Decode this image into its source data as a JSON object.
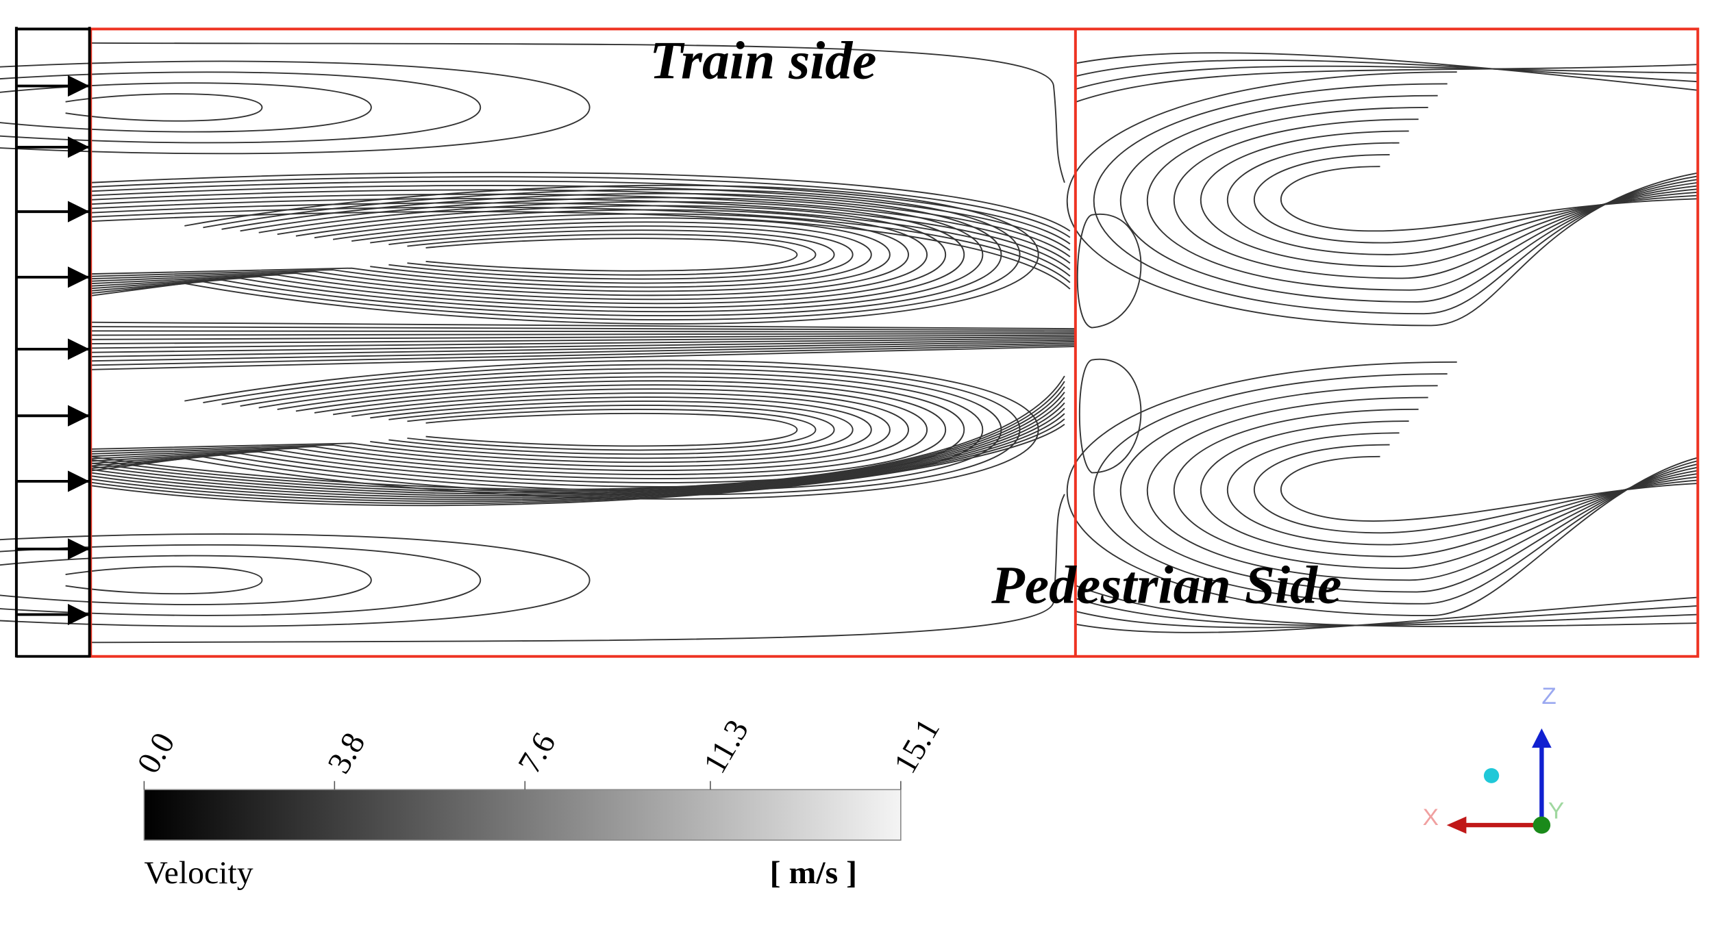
{
  "labels": {
    "top": "Train side",
    "bottom": "Pedestrian Side"
  },
  "colorbar": {
    "title": "Velocity",
    "unit": "[ m/s ]",
    "range": [
      0,
      15.1
    ],
    "ticks": [
      {
        "value": 0,
        "label": "0.0"
      },
      {
        "value": 3.8,
        "label": "3.8"
      },
      {
        "value": 7.6,
        "label": "7.6"
      },
      {
        "value": 11.3,
        "label": "11.3"
      },
      {
        "value": 15.1,
        "label": "15.1"
      }
    ]
  },
  "axes": {
    "x": "X",
    "y": "Y",
    "z": "Z"
  }
}
